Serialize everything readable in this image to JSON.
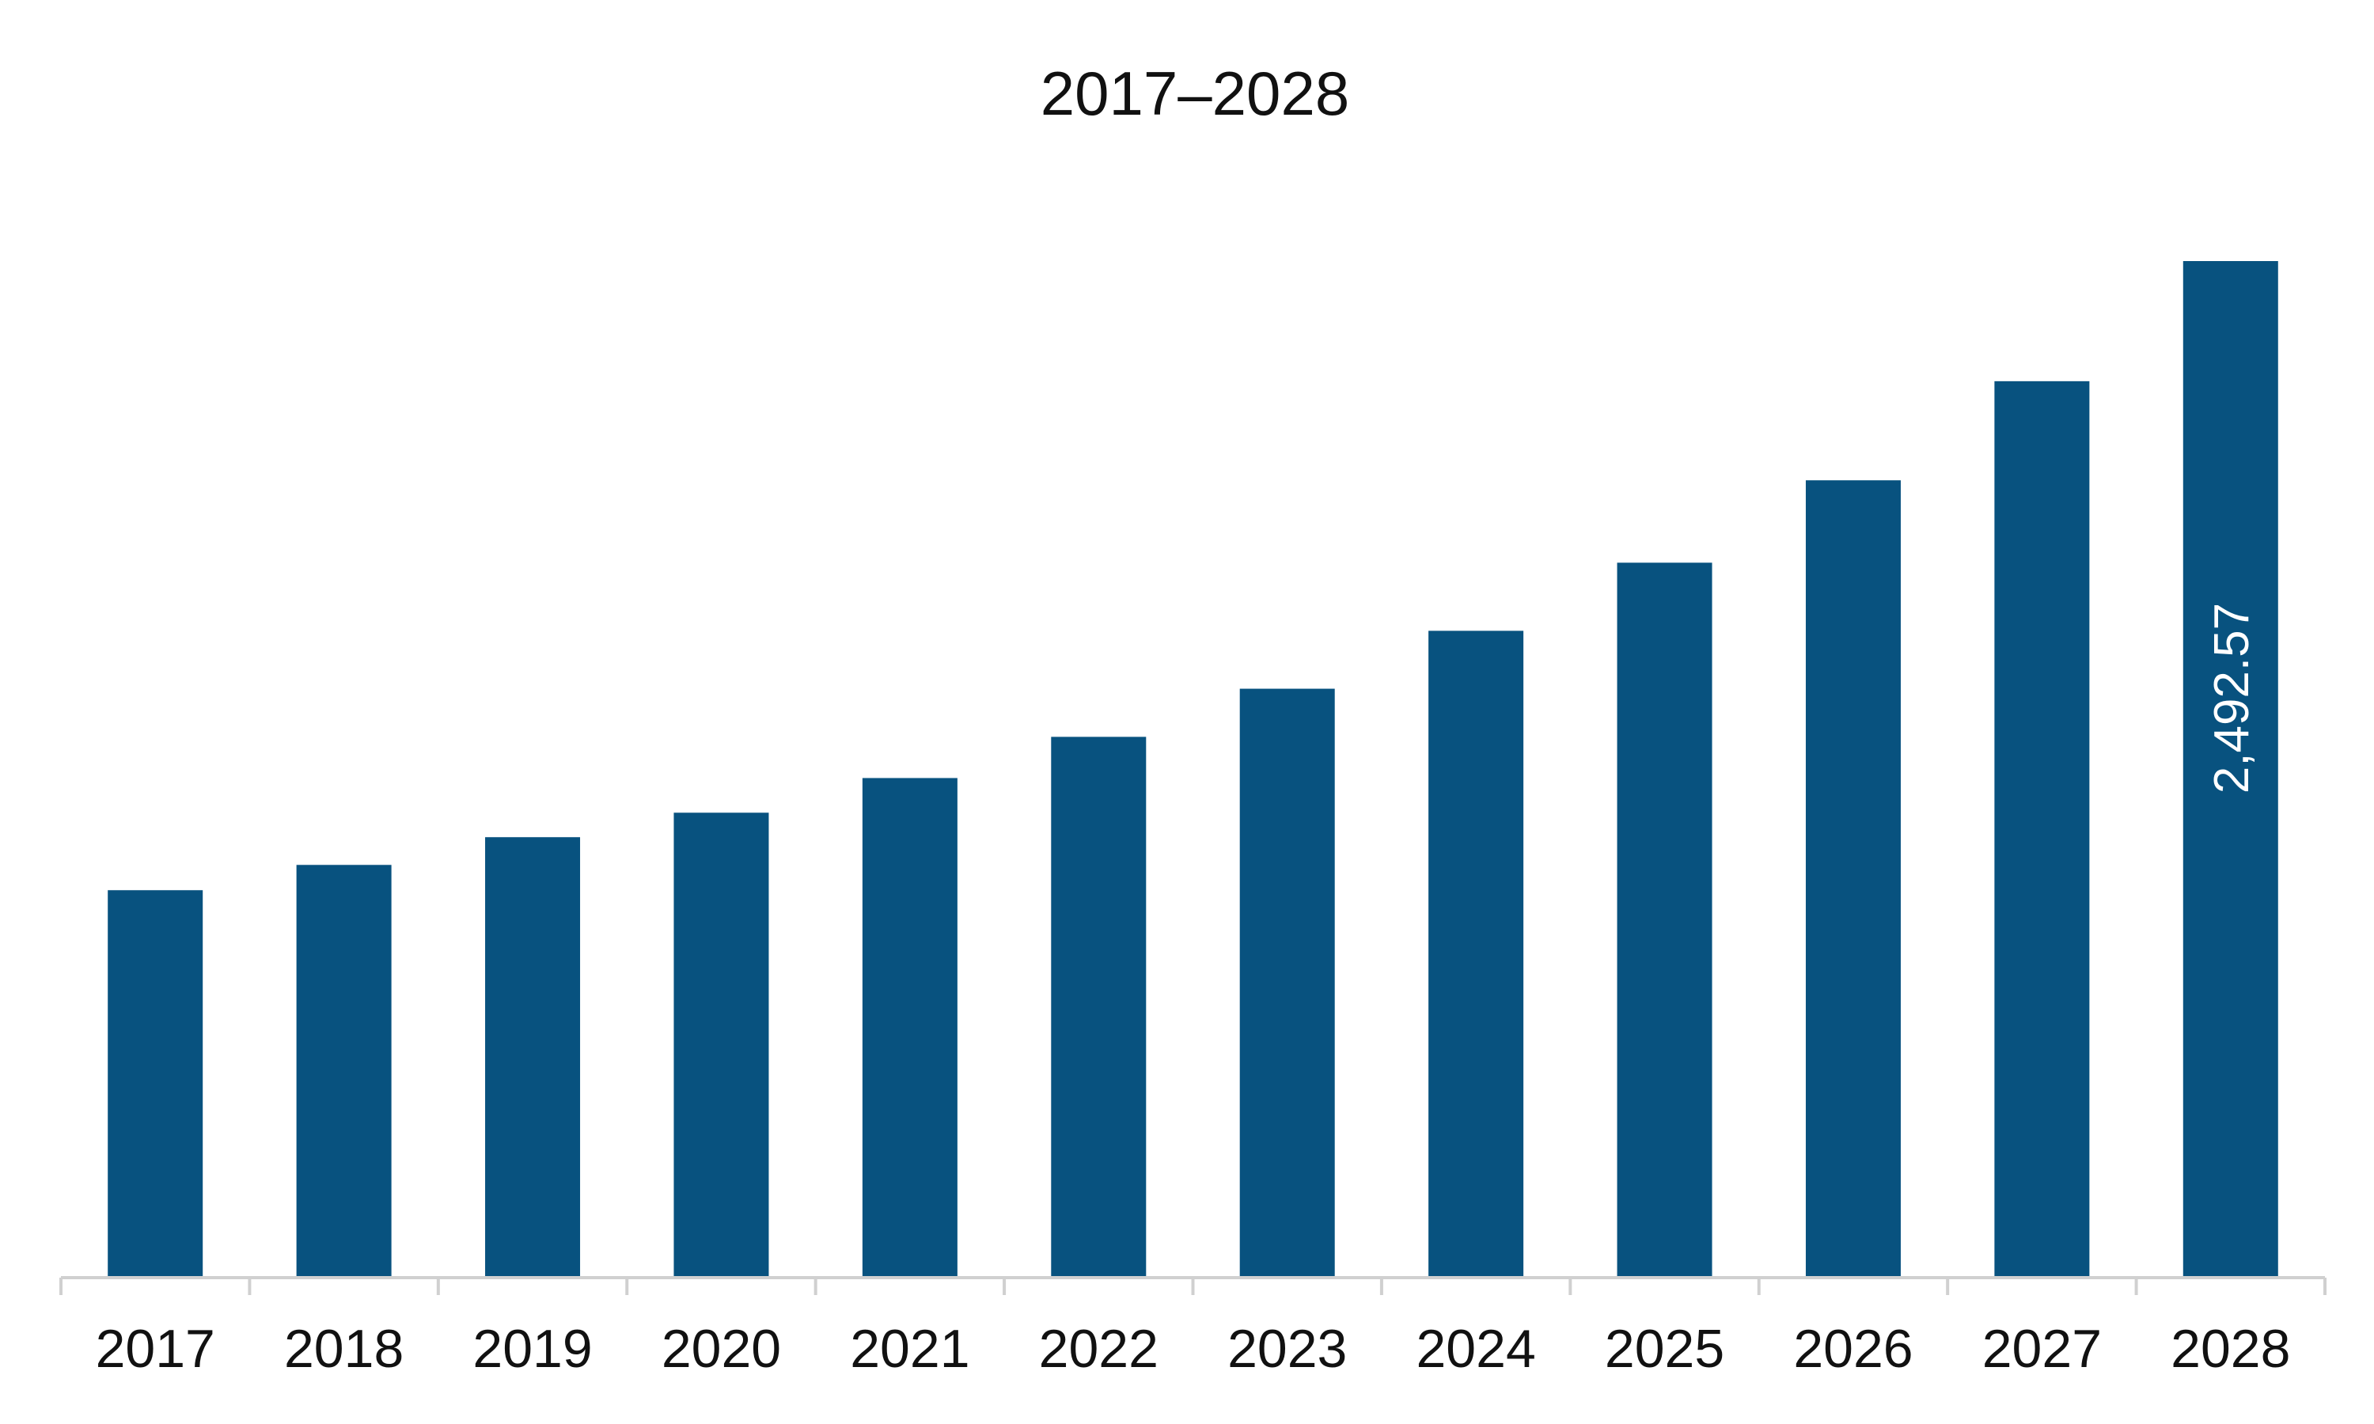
{
  "chart_data": {
    "type": "bar",
    "title": "2017–2028",
    "xlabel": "",
    "ylabel": "",
    "categories": [
      "2017",
      "2018",
      "2019",
      "2020",
      "2021",
      "2022",
      "2023",
      "2024",
      "2025",
      "2026",
      "2027",
      "2028"
    ],
    "values": [
      950,
      1012,
      1080,
      1140,
      1225,
      1326,
      1444,
      1586,
      1753,
      1955,
      2198,
      2492.57
    ],
    "data_labels": [
      "",
      "",
      "",
      "",
      "",
      "",
      "",
      "",
      "",
      "",
      "",
      "2,492.57"
    ],
    "ylim": [
      0,
      2492.57
    ],
    "grid": false,
    "legend": "none",
    "colors": {
      "bar": "#08527F",
      "axis": "#D0D0D0",
      "text": "#111111",
      "label": "#ffffff"
    }
  }
}
